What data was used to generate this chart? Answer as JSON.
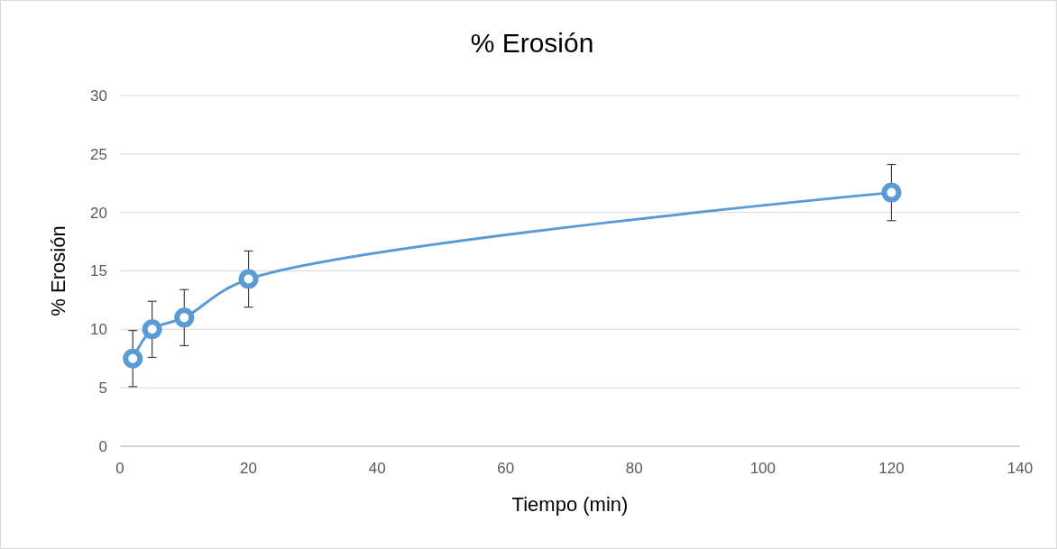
{
  "chart_data": {
    "type": "line",
    "title": "% Erosión",
    "xlabel": "Tiempo (min)",
    "ylabel": "% Erosión",
    "x": [
      2,
      5,
      10,
      20,
      120
    ],
    "series": [
      {
        "color": "#5b9bd5",
        "values": [
          7.5,
          10.0,
          11.0,
          14.3,
          21.7
        ],
        "errors": [
          2.4,
          2.4,
          2.4,
          2.4,
          2.4
        ]
      }
    ],
    "xlim": [
      0,
      140
    ],
    "xticks": [
      0,
      20,
      40,
      60,
      80,
      100,
      120,
      140
    ],
    "ylim": [
      0,
      30
    ],
    "yticks": [
      0,
      5,
      10,
      15,
      20,
      25,
      30
    ],
    "grid": "y",
    "marker": "circle",
    "line_style": "solid"
  }
}
